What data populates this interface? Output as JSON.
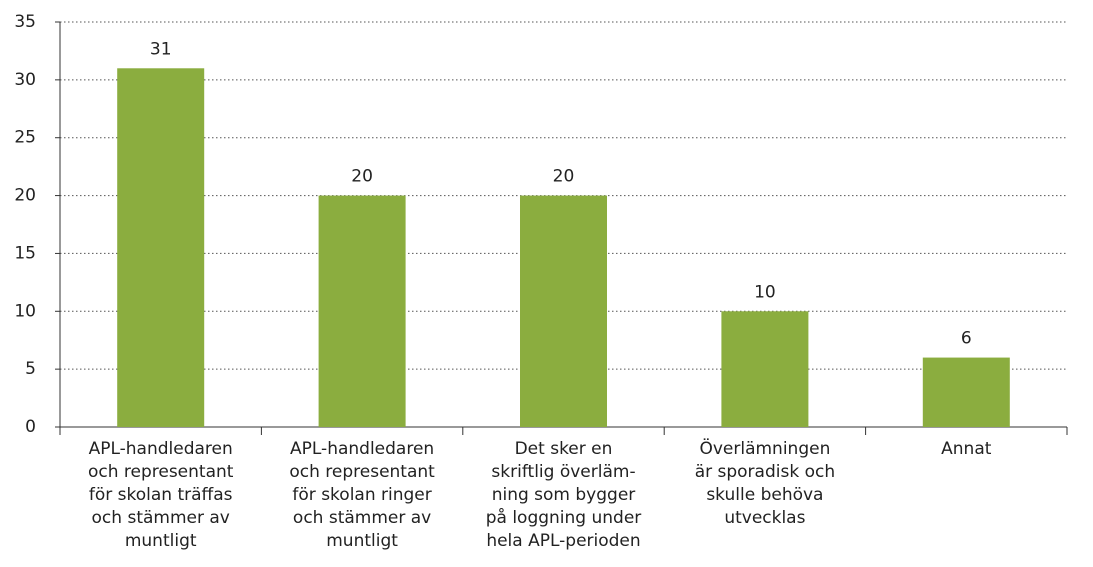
{
  "chart_data": {
    "type": "bar",
    "categories": [
      "APL-handledaren\noch representant\nför skolan träffas\noch stämmer av\nmuntligt",
      "APL-handledaren\noch representant\nför skolan ringer\noch stämmer av\nmuntligt",
      "Det sker en\nskriftlig överläm-\nning som bygger\npå loggning under\nhela APL-perioden",
      "Överlämningen\när sporadisk och\nskulle behöva\nutvecklas",
      "Annat"
    ],
    "values": [
      31,
      20,
      20,
      10,
      6
    ],
    "color": "#8bad3f",
    "ylim": [
      0,
      35
    ],
    "yticks": [
      0,
      5,
      10,
      15,
      20,
      25,
      30,
      35
    ],
    "grid": true
  }
}
